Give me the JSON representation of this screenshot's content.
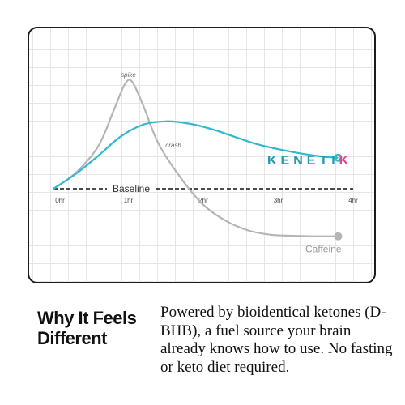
{
  "brand": {
    "name_part1": "KENETI",
    "name_part2": "K",
    "primary_color": "#31b8d1",
    "accent_color": "#e6457a"
  },
  "chart_data": {
    "type": "line",
    "xlabel": "",
    "ylabel": "",
    "x_ticks": [
      "0hr",
      "1hr",
      "2hr",
      "3hr",
      "4hr"
    ],
    "xlim": [
      0,
      4
    ],
    "ylim": [
      -1.0,
      2.2
    ],
    "grid": true,
    "baseline": {
      "label": "Baseline",
      "value": 0
    },
    "annotations": [
      {
        "text": "spike",
        "x": 1.0,
        "y": 2.0
      },
      {
        "text": "crash",
        "x": 1.6,
        "y": 0.68
      }
    ],
    "series": [
      {
        "name": "Kenetik",
        "color": "#31b8d1",
        "x": [
          0,
          0.3,
          0.6,
          0.9,
          1.2,
          1.5,
          1.8,
          2.1,
          2.4,
          2.7,
          3.0,
          3.3,
          3.6,
          3.8
        ],
        "y": [
          0,
          0.28,
          0.62,
          0.98,
          1.2,
          1.26,
          1.22,
          1.12,
          0.98,
          0.84,
          0.74,
          0.66,
          0.6,
          0.58
        ]
      },
      {
        "name": "Caffeine",
        "color": "#b5b5b5",
        "x": [
          0,
          0.3,
          0.6,
          0.8,
          0.95,
          1.05,
          1.2,
          1.4,
          1.7,
          2.0,
          2.3,
          2.6,
          2.9,
          3.2,
          3.5,
          3.8
        ],
        "y": [
          0,
          0.3,
          0.8,
          1.45,
          1.95,
          2.0,
          1.55,
          0.85,
          0.2,
          -0.3,
          -0.6,
          -0.78,
          -0.86,
          -0.88,
          -0.89,
          -0.89
        ]
      }
    ]
  },
  "heading": {
    "line1": "Why It Feels",
    "line2": "Different"
  },
  "description": {
    "text": "Powered by bioidentical ketones (D-BHB), a fuel source your brain already knows how to use. No fasting or keto diet required."
  }
}
